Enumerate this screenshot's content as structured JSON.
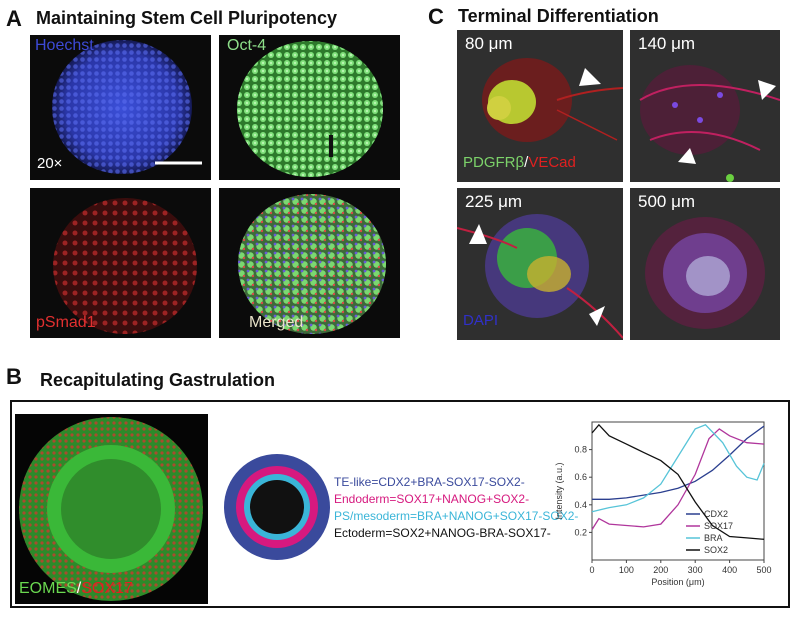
{
  "panel_a": {
    "letter": "A",
    "title": "Maintaining Stem Cell Pluripotency",
    "images": {
      "hoechst": {
        "label": "Hoechst",
        "magnification": "20×"
      },
      "oct4": {
        "label": "Oct-4"
      },
      "psmad1": {
        "label": "pSmad1"
      },
      "merged": {
        "label": "Merged"
      }
    }
  },
  "panel_c": {
    "letter": "C",
    "title": "Terminal Differentiation",
    "images": {
      "c80": {
        "size": "80 μm",
        "label_green": "PDGFRβ",
        "label_sep": "/",
        "label_red": "VECad"
      },
      "c140": {
        "size": "140 μm"
      },
      "c225": {
        "size": "225 μm",
        "label_blue": "DAPI"
      },
      "c500": {
        "size": "500 μm"
      }
    }
  },
  "panel_b": {
    "letter": "B",
    "title": "Recapitulating Gastrulation",
    "image_label_green": "EOMES",
    "image_label_sep": "/",
    "image_label_red": "SOX17",
    "legend": [
      {
        "text": "TE-like=CDX2+BRA-SOX17-SOX2-",
        "color": "#3a4a9c"
      },
      {
        "text": "Endoderm=SOX17+NANOG+SOX2-",
        "color": "#d6197f"
      },
      {
        "text": "PS/mesoderm=BRA+NANOG+SOX17-SOX2-",
        "color": "#3ab5d8"
      },
      {
        "text": "Ectoderm=SOX2+NANOG-BRA-SOX17-",
        "color": "#111111"
      }
    ],
    "rings": {
      "outer": "#3a4a9c",
      "second": "#d6197f",
      "third": "#3ab5d8",
      "inner": "#111111"
    }
  },
  "chart_data": {
    "type": "line",
    "xlabel": "Position  (μm)",
    "ylabel": "Intensity (a.u.)",
    "xlim": [
      0,
      500
    ],
    "ylim": [
      0,
      1.0
    ],
    "xticks": [
      0,
      100,
      200,
      300,
      400,
      500
    ],
    "yticks": [
      0.2,
      0.4,
      0.6,
      0.8
    ],
    "legend_position": "right",
    "series": [
      {
        "name": "CDX2",
        "color": "#2b3f8f",
        "x": [
          0,
          50,
          100,
          150,
          200,
          250,
          300,
          350,
          400,
          450,
          500
        ],
        "y": [
          0.44,
          0.44,
          0.45,
          0.47,
          0.49,
          0.52,
          0.57,
          0.65,
          0.76,
          0.88,
          0.97
        ]
      },
      {
        "name": "SOX17",
        "color": "#b0369c",
        "x": [
          0,
          20,
          50,
          100,
          150,
          200,
          250,
          300,
          340,
          370,
          400,
          450,
          500
        ],
        "y": [
          0.22,
          0.3,
          0.26,
          0.25,
          0.24,
          0.26,
          0.4,
          0.62,
          0.88,
          0.95,
          0.9,
          0.85,
          0.84
        ]
      },
      {
        "name": "BRA",
        "color": "#57c4d8",
        "x": [
          0,
          50,
          100,
          150,
          200,
          250,
          300,
          330,
          380,
          420,
          450,
          480,
          500
        ],
        "y": [
          0.35,
          0.38,
          0.4,
          0.45,
          0.55,
          0.75,
          0.95,
          0.98,
          0.85,
          0.68,
          0.6,
          0.58,
          0.7
        ]
      },
      {
        "name": "SOX2",
        "color": "#111111",
        "x": [
          0,
          20,
          50,
          100,
          150,
          200,
          250,
          300,
          350,
          400,
          450,
          500
        ],
        "y": [
          0.92,
          0.98,
          0.9,
          0.84,
          0.78,
          0.72,
          0.62,
          0.42,
          0.25,
          0.17,
          0.16,
          0.15
        ]
      }
    ]
  }
}
